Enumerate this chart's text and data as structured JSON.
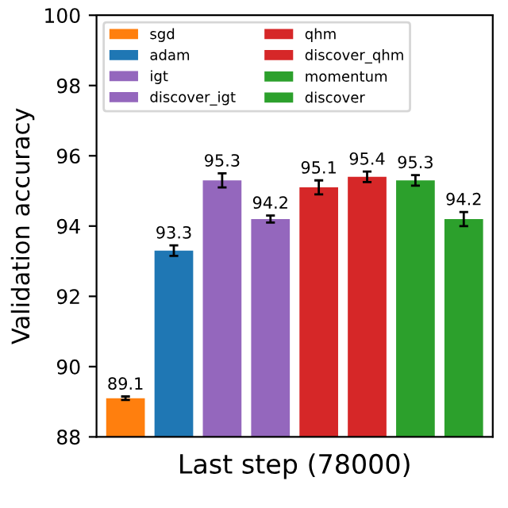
{
  "chart_data": {
    "type": "bar",
    "categories": [
      null,
      null,
      null,
      null,
      null,
      null,
      null,
      null
    ],
    "xlabel": "Last step (78000)",
    "ylabel": "Validation accuracy",
    "ylim": [
      88,
      100
    ],
    "yticks": [
      88,
      90,
      92,
      94,
      96,
      98,
      100
    ],
    "data_labels": true,
    "legend": "top left",
    "grid": false,
    "series": [
      {
        "name": "sgd",
        "color": "#ff7f0e",
        "values": [
          89.1,
          null,
          null,
          null,
          null,
          null,
          null,
          null
        ],
        "errors": [
          0.05,
          null,
          null,
          null,
          null,
          null,
          null,
          null
        ]
      },
      {
        "name": "adam",
        "color": "#1f77b4",
        "values": [
          null,
          93.3,
          null,
          null,
          null,
          null,
          null,
          null
        ],
        "errors": [
          null,
          0.15,
          null,
          null,
          null,
          null,
          null,
          null
        ]
      },
      {
        "name": "igt",
        "color": "#9467bd",
        "values": [
          null,
          null,
          95.3,
          null,
          null,
          null,
          null,
          null
        ],
        "errors": [
          null,
          null,
          0.2,
          null,
          null,
          null,
          null,
          null
        ]
      },
      {
        "name": "discover_igt",
        "color": "#9467bd",
        "values": [
          null,
          null,
          null,
          94.2,
          null,
          null,
          null,
          null
        ],
        "errors": [
          null,
          null,
          null,
          0.1,
          null,
          null,
          null,
          null
        ]
      },
      {
        "name": "qhm",
        "color": "#d62728",
        "values": [
          null,
          null,
          null,
          null,
          95.1,
          null,
          null,
          null
        ],
        "errors": [
          null,
          null,
          null,
          null,
          0.2,
          null,
          null,
          null
        ]
      },
      {
        "name": "discover_qhm",
        "color": "#d62728",
        "values": [
          null,
          null,
          null,
          null,
          null,
          95.4,
          null,
          null
        ],
        "errors": [
          null,
          null,
          null,
          null,
          null,
          0.15,
          null,
          null
        ]
      },
      {
        "name": "momentum",
        "color": "#2ca02c",
        "values": [
          null,
          null,
          null,
          null,
          null,
          null,
          95.3,
          null
        ],
        "errors": [
          null,
          null,
          null,
          null,
          null,
          null,
          0.15,
          null
        ]
      },
      {
        "name": "discover",
        "color": "#2ca02c",
        "values": [
          null,
          null,
          null,
          null,
          null,
          null,
          null,
          94.2
        ],
        "errors": [
          null,
          null,
          null,
          null,
          null,
          null,
          null,
          0.2
        ]
      }
    ]
  }
}
